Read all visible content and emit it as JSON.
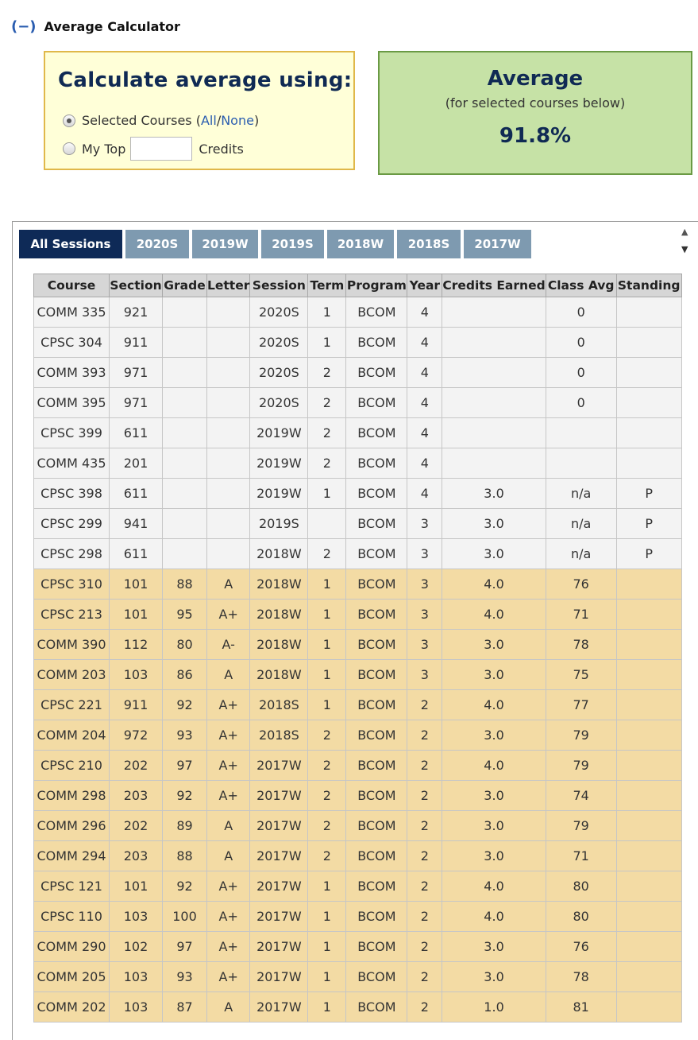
{
  "header": {
    "toggle": "(−)",
    "title": "Average Calculator"
  },
  "method": {
    "title": "Calculate average using:",
    "option1_label": "Selected Courses (",
    "all_link": "All",
    "separator": " / ",
    "none_link": "None",
    "option1_close": ")",
    "option2_prefix": "My Top",
    "option2_input_value": "",
    "option2_suffix": "Credits"
  },
  "average": {
    "title": "Average",
    "subtitle": "(for selected courses below)",
    "value": "91.8%"
  },
  "tabs": [
    {
      "label": "All Sessions",
      "active": true
    },
    {
      "label": "2020S",
      "active": false
    },
    {
      "label": "2019W",
      "active": false
    },
    {
      "label": "2019S",
      "active": false
    },
    {
      "label": "2018W",
      "active": false
    },
    {
      "label": "2018S",
      "active": false
    },
    {
      "label": "2017W",
      "active": false
    }
  ],
  "scroll": {
    "up": "▲",
    "down": "▼"
  },
  "table": {
    "columns": [
      "Course",
      "Section",
      "Grade",
      "Letter",
      "Session",
      "Term",
      "Program",
      "Year",
      "Credits Earned",
      "Class Avg",
      "Standing"
    ],
    "rows": [
      [
        "COMM 335",
        "921",
        "",
        "",
        "2020S",
        "1",
        "BCOM",
        "4",
        "",
        "0",
        ""
      ],
      [
        "CPSC 304",
        "911",
        "",
        "",
        "2020S",
        "1",
        "BCOM",
        "4",
        "",
        "0",
        ""
      ],
      [
        "COMM 393",
        "971",
        "",
        "",
        "2020S",
        "2",
        "BCOM",
        "4",
        "",
        "0",
        ""
      ],
      [
        "COMM 395",
        "971",
        "",
        "",
        "2020S",
        "2",
        "BCOM",
        "4",
        "",
        "0",
        ""
      ],
      [
        "CPSC 399",
        "611",
        "",
        "",
        "2019W",
        "2",
        "BCOM",
        "4",
        "",
        "",
        ""
      ],
      [
        "COMM 435",
        "201",
        "",
        "",
        "2019W",
        "2",
        "BCOM",
        "4",
        "",
        "",
        ""
      ],
      [
        "CPSC 398",
        "611",
        "",
        "",
        "2019W",
        "1",
        "BCOM",
        "4",
        "3.0",
        "n/a",
        "P"
      ],
      [
        "CPSC 299",
        "941",
        "",
        "",
        "2019S",
        "",
        "BCOM",
        "3",
        "3.0",
        "n/a",
        "P"
      ],
      [
        "CPSC 298",
        "611",
        "",
        "",
        "2018W",
        "2",
        "BCOM",
        "3",
        "3.0",
        "n/a",
        "P"
      ],
      [
        "CPSC 310",
        "101",
        "88",
        "A",
        "2018W",
        "1",
        "BCOM",
        "3",
        "4.0",
        "76",
        ""
      ],
      [
        "CPSC 213",
        "101",
        "95",
        "A+",
        "2018W",
        "1",
        "BCOM",
        "3",
        "4.0",
        "71",
        ""
      ],
      [
        "COMM 390",
        "112",
        "80",
        "A-",
        "2018W",
        "1",
        "BCOM",
        "3",
        "3.0",
        "78",
        ""
      ],
      [
        "COMM 203",
        "103",
        "86",
        "A",
        "2018W",
        "1",
        "BCOM",
        "3",
        "3.0",
        "75",
        ""
      ],
      [
        "CPSC 221",
        "911",
        "92",
        "A+",
        "2018S",
        "1",
        "BCOM",
        "2",
        "4.0",
        "77",
        ""
      ],
      [
        "COMM 204",
        "972",
        "93",
        "A+",
        "2018S",
        "2",
        "BCOM",
        "2",
        "3.0",
        "79",
        ""
      ],
      [
        "CPSC 210",
        "202",
        "97",
        "A+",
        "2017W",
        "2",
        "BCOM",
        "2",
        "4.0",
        "79",
        ""
      ],
      [
        "COMM 298",
        "203",
        "92",
        "A+",
        "2017W",
        "2",
        "BCOM",
        "2",
        "3.0",
        "74",
        ""
      ],
      [
        "COMM 296",
        "202",
        "89",
        "A",
        "2017W",
        "2",
        "BCOM",
        "2",
        "3.0",
        "79",
        ""
      ],
      [
        "COMM 294",
        "203",
        "88",
        "A",
        "2017W",
        "2",
        "BCOM",
        "2",
        "3.0",
        "71",
        ""
      ],
      [
        "CPSC 121",
        "101",
        "92",
        "A+",
        "2017W",
        "1",
        "BCOM",
        "2",
        "4.0",
        "80",
        ""
      ],
      [
        "CPSC 110",
        "103",
        "100",
        "A+",
        "2017W",
        "1",
        "BCOM",
        "2",
        "4.0",
        "80",
        ""
      ],
      [
        "COMM 290",
        "102",
        "97",
        "A+",
        "2017W",
        "1",
        "BCOM",
        "2",
        "3.0",
        "76",
        ""
      ],
      [
        "COMM 205",
        "103",
        "93",
        "A+",
        "2017W",
        "1",
        "BCOM",
        "2",
        "3.0",
        "78",
        ""
      ],
      [
        "COMM 202",
        "103",
        "87",
        "A",
        "2017W",
        "1",
        "BCOM",
        "2",
        "1.0",
        "81",
        ""
      ]
    ]
  },
  "colors": {
    "accent": "#0e2a57",
    "tab": "#7e9ab0",
    "graded_row": "#f3dba4",
    "ungraded_row": "#f3f3f3",
    "avg_box": "#c6e2a6",
    "method_box": "#ffffd8"
  }
}
